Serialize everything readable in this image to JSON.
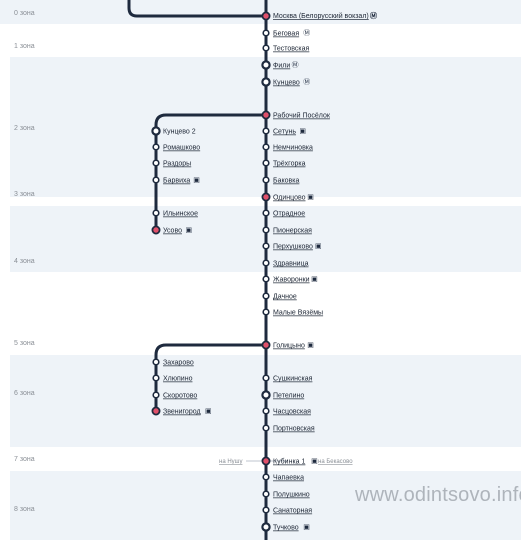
{
  "zones": [
    "0 зона",
    "1 зона",
    "2 зона",
    "3 зона",
    "4 зона",
    "5 зона",
    "6 зона",
    "7 зона",
    "8 зона"
  ],
  "top_station": "Москва (Белорусский вокзал)",
  "main_line": [
    "Беговая",
    "Тестовская",
    "Фили",
    "Кунцево",
    "Рабочий Посёлок",
    "Сетунь",
    "Немчиновка",
    "Трёхгорка",
    "Баковка",
    "Одинцово",
    "Отрадное",
    "Пионерская",
    "Перхушково",
    "Здравница",
    "Жаворонки",
    "Дачное",
    "Малые Вязёмы",
    "Голицыно",
    "Сушкинская",
    "Петелино",
    "Часцовская",
    "Портновская",
    "Кубинка 1",
    "Чапаевка",
    "Полушкино",
    "Санаторная",
    "Тучково"
  ],
  "branch_usovo": [
    "Кунцево 2",
    "Ромашково",
    "Раздоры",
    "Барвиха",
    "Ильинское",
    "Усово"
  ],
  "branch_zvenigorod": [
    "Захарово",
    "Хлюпино",
    "Скоротово",
    "Звенигород"
  ],
  "directions": {
    "left": "на Нушу",
    "right": "на Бекасово"
  },
  "watermark": "www.odintsovo.info",
  "icons": [
    "metro-icon",
    "bus-icon"
  ],
  "colors": {
    "line": "#1e2a3e",
    "major_station": "#e0506a",
    "zone_band": "#eef3f8"
  }
}
